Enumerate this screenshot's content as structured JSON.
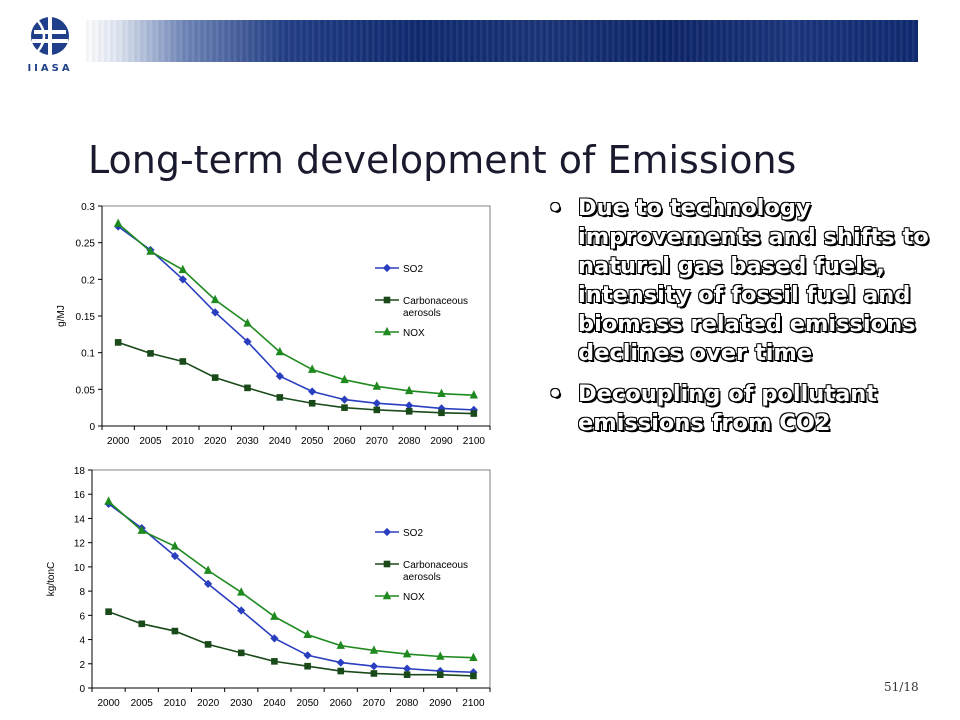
{
  "logo": {
    "text": "IIASA"
  },
  "slide": {
    "title": "Long-term development of Emissions",
    "bullets": [
      "Due to technology improvements and shifts to natural gas based fuels, intensity of fossil fuel and biomass related emissions declines over time",
      "Decoupling of pollutant emissions from CO2"
    ],
    "bullet_marker": "•",
    "page_number": "51/18"
  },
  "colors": {
    "so2": "#2a3fbf",
    "carbonaceous": "#1a4a1a",
    "nox": "#1f8a1f"
  },
  "chart_data": [
    {
      "type": "line",
      "ylabel": "g/MJ",
      "xlabel": "",
      "categories": [
        "2000",
        "2005",
        "2010",
        "2020",
        "2030",
        "2040",
        "2050",
        "2060",
        "2070",
        "2080",
        "2090",
        "2100"
      ],
      "ylim": [
        0,
        0.3
      ],
      "yticks": [
        0,
        0.05,
        0.1,
        0.15,
        0.2,
        0.25,
        0.3
      ],
      "ytick_labels": [
        "0",
        "0.05",
        "0.1",
        "0.15",
        "0.2",
        "0.25",
        "0.3"
      ],
      "legend_position": "right-middle",
      "grid": false,
      "series": [
        {
          "name": "SO2",
          "marker": "diamond",
          "values": [
            0.272,
            0.24,
            0.2,
            0.155,
            0.115,
            0.068,
            0.047,
            0.036,
            0.031,
            0.028,
            0.024,
            0.022
          ]
        },
        {
          "name": "Carbonaceous aerosols",
          "marker": "square",
          "values": [
            0.114,
            0.099,
            0.088,
            0.066,
            0.052,
            0.039,
            0.031,
            0.025,
            0.022,
            0.02,
            0.018,
            0.017
          ]
        },
        {
          "name": "NOX",
          "marker": "triangle",
          "values": [
            0.276,
            0.238,
            0.213,
            0.172,
            0.14,
            0.101,
            0.077,
            0.063,
            0.054,
            0.048,
            0.044,
            0.042
          ]
        }
      ]
    },
    {
      "type": "line",
      "ylabel": "kg/tonC",
      "xlabel": "",
      "categories": [
        "2000",
        "2005",
        "2010",
        "2020",
        "2030",
        "2040",
        "2050",
        "2060",
        "2070",
        "2080",
        "2090",
        "2100"
      ],
      "ylim": [
        0,
        18
      ],
      "yticks": [
        0,
        2,
        4,
        6,
        8,
        10,
        12,
        14,
        16,
        18
      ],
      "ytick_labels": [
        "0",
        "2",
        "4",
        "6",
        "8",
        "10",
        "12",
        "14",
        "16",
        "18"
      ],
      "legend_position": "right-middle",
      "grid": false,
      "series": [
        {
          "name": "SO2",
          "marker": "diamond",
          "values": [
            15.2,
            13.2,
            10.9,
            8.6,
            6.4,
            4.1,
            2.7,
            2.1,
            1.8,
            1.6,
            1.4,
            1.3
          ]
        },
        {
          "name": "Carbonaceous aerosols",
          "marker": "square",
          "values": [
            6.3,
            5.3,
            4.7,
            3.6,
            2.9,
            2.2,
            1.8,
            1.4,
            1.2,
            1.1,
            1.1,
            1.0
          ]
        },
        {
          "name": "NOX",
          "marker": "triangle",
          "values": [
            15.4,
            13.0,
            11.7,
            9.7,
            7.9,
            5.9,
            4.4,
            3.5,
            3.1,
            2.8,
            2.6,
            2.5
          ]
        }
      ]
    }
  ]
}
